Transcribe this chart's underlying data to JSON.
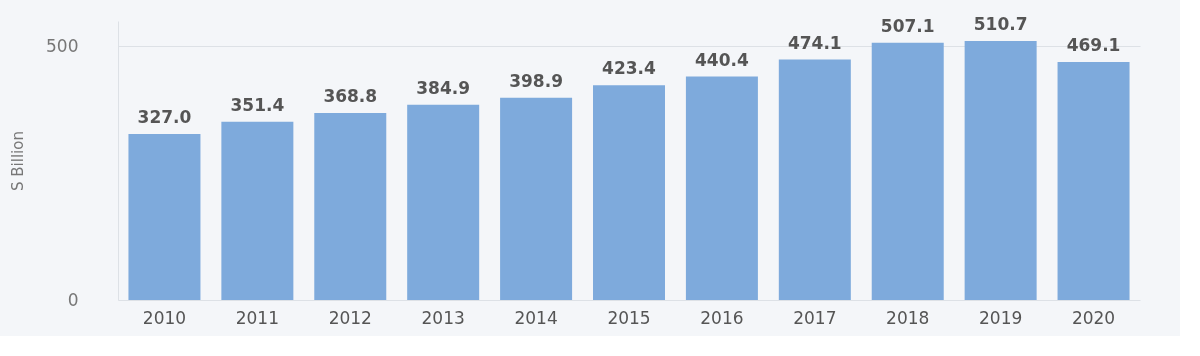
{
  "chart_data": {
    "type": "bar",
    "ylabel": "S Billion",
    "categories": [
      "2010",
      "2011",
      "2012",
      "2013",
      "2014",
      "2015",
      "2016",
      "2017",
      "2018",
      "2019",
      "2020"
    ],
    "values": [
      327.0,
      351.4,
      368.8,
      384.9,
      398.9,
      423.4,
      440.4,
      474.1,
      507.1,
      510.7,
      469.1
    ],
    "value_labels": [
      "327.0",
      "351.4",
      "368.8",
      "384.9",
      "398.9",
      "423.4",
      "440.4",
      "474.1",
      "507.1",
      "510.7",
      "469.1"
    ],
    "color": "#7eaadc",
    "ylim": [
      0,
      550
    ],
    "yticks": [
      0,
      500
    ],
    "grid": "y"
  }
}
